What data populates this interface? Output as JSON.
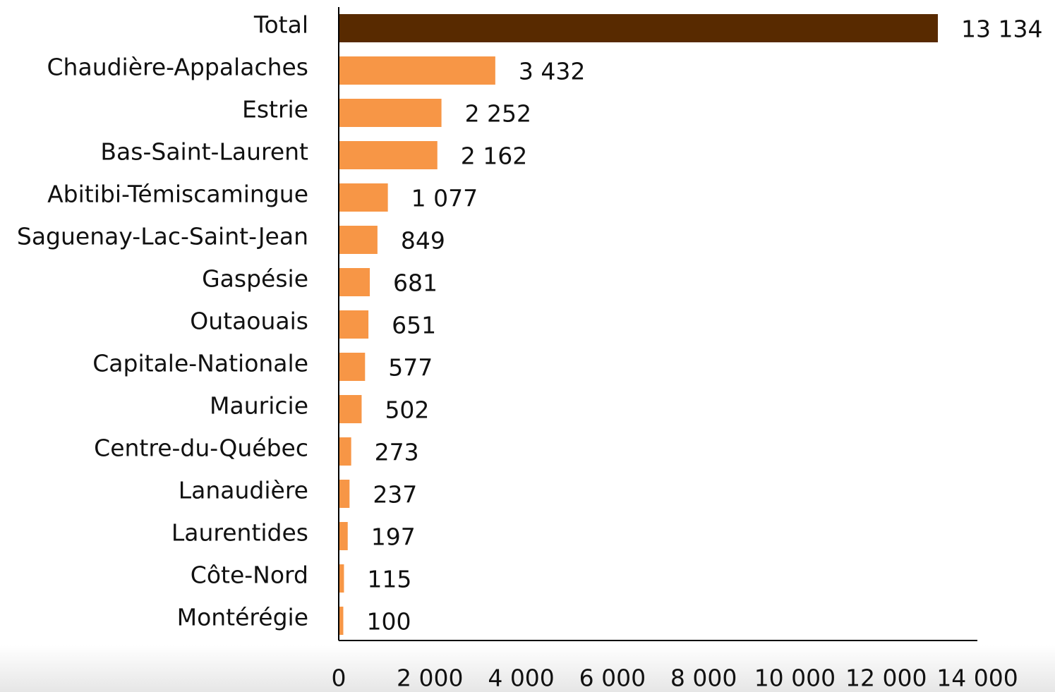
{
  "chart_data": {
    "type": "barh",
    "categories": [
      "Total",
      "Chaudière-Appalaches",
      "Estrie",
      "Bas-Saint-Laurent",
      "Abitibi-Témiscamingue",
      "Saguenay-Lac-Saint-Jean",
      "Gaspésie",
      "Outaouais",
      "Capitale-Nationale",
      "Mauricie",
      "Centre-du-Québec",
      "Lanaudière",
      "Laurentides",
      "Côte-Nord",
      "Montérégie"
    ],
    "values": [
      13134,
      3432,
      2252,
      2162,
      1077,
      849,
      681,
      651,
      577,
      502,
      273,
      237,
      197,
      115,
      100
    ],
    "value_labels": [
      "13 134",
      "3 432",
      "2 252",
      "2 162",
      "1 077",
      "849",
      "681",
      "651",
      "577",
      "502",
      "273",
      "237",
      "197",
      "115",
      "100"
    ],
    "colors": [
      "#582a00",
      "#f79646",
      "#f79646",
      "#f79646",
      "#f79646",
      "#f79646",
      "#f79646",
      "#f79646",
      "#f79646",
      "#f79646",
      "#f79646",
      "#f79646",
      "#f79646",
      "#f79646",
      "#f79646"
    ],
    "xlim": [
      0,
      14000
    ],
    "xticks": [
      0,
      {
        "value": 2000,
        "label": "2 000"
      },
      {
        "value": 4000,
        "label": "4 000"
      },
      {
        "value": 6000,
        "label": "6 000"
      },
      {
        "value": 8000,
        "label": "8 000"
      },
      {
        "value": 10000,
        "label": "10 000"
      },
      {
        "value": 12000,
        "label": "12 000"
      },
      {
        "value": 14000,
        "label": "14 000"
      }
    ],
    "grid": false
  }
}
